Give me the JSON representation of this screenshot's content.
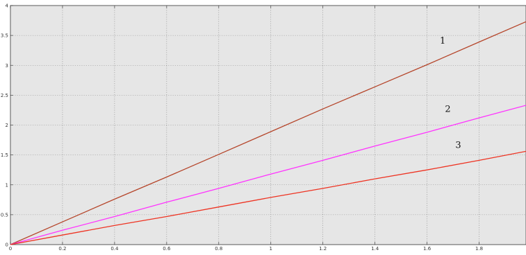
{
  "chart_data": {
    "type": "line",
    "title": "",
    "xlabel": "",
    "ylabel": "",
    "xlim": [
      0,
      1.98
    ],
    "ylim": [
      0,
      4
    ],
    "grid": true,
    "background": "#e6e6e6",
    "x_ticks": [
      0,
      0.2,
      0.4,
      0.6,
      0.8,
      1,
      1.2,
      1.4,
      1.6,
      1.8
    ],
    "x_tick_labels": [
      "0",
      "0.2",
      "0.4",
      "0.6",
      "0.8",
      "1",
      "1.2",
      "1.4",
      "1.6",
      "1.8"
    ],
    "y_ticks": [
      0,
      0.5,
      1,
      1.5,
      2,
      2.5,
      3,
      3.5,
      4
    ],
    "y_tick_labels": [
      "0",
      "0.5",
      "1",
      "1.5",
      "2",
      "2.5",
      "3",
      "3.5",
      "4"
    ],
    "series": [
      {
        "name": "1",
        "color": "#b5452a",
        "x": [
          0,
          0.2,
          0.4,
          0.6,
          0.8,
          1.0,
          1.2,
          1.4,
          1.6,
          1.8,
          1.98
        ],
        "y": [
          0,
          0.38,
          0.76,
          1.13,
          1.51,
          1.89,
          2.27,
          2.64,
          3.01,
          3.39,
          3.73
        ]
      },
      {
        "name": "2",
        "color": "#ff33ff",
        "x": [
          0,
          0.2,
          0.4,
          0.6,
          0.8,
          1.0,
          1.2,
          1.4,
          1.6,
          1.8,
          1.98
        ],
        "y": [
          0,
          0.24,
          0.47,
          0.71,
          0.94,
          1.18,
          1.41,
          1.65,
          1.88,
          2.12,
          2.33
        ]
      },
      {
        "name": "3",
        "color": "#ee3322",
        "x": [
          0,
          0.2,
          0.4,
          0.6,
          0.8,
          1.0,
          1.2,
          1.4,
          1.6,
          1.8,
          1.98
        ],
        "y": [
          0,
          0.16,
          0.32,
          0.47,
          0.63,
          0.79,
          0.94,
          1.1,
          1.25,
          1.41,
          1.56
        ]
      }
    ],
    "annotations": [
      {
        "text": "1",
        "x": 1.66,
        "y": 3.36
      },
      {
        "text": "2",
        "x": 1.68,
        "y": 2.22
      },
      {
        "text": "3",
        "x": 1.72,
        "y": 1.62
      }
    ]
  }
}
